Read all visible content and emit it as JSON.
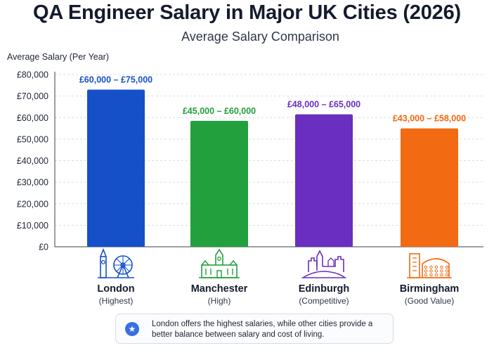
{
  "header": {
    "title": "QA Engineer Salary in Major UK Cities (2026)",
    "subtitle": "Average Salary Comparison"
  },
  "chart_data": {
    "type": "bar",
    "title": "QA Engineer Salary in Major UK Cities (2026)",
    "subtitle": "Average Salary Comparison",
    "ylabel": "Average Salary (Per Year)",
    "xlabel": "",
    "ylim": [
      0,
      80000
    ],
    "yticks": [
      "£0",
      "£10,000",
      "£20,000",
      "£30,000",
      "£40,000",
      "£50,000",
      "£60,000",
      "£70,000",
      "£80,000"
    ],
    "grid": true,
    "categories": [
      "London",
      "Manchester",
      "Edinburgh",
      "Birmingham"
    ],
    "sublabels": [
      "(Highest)",
      "(High)",
      "(Competitive)",
      "(Good Value)"
    ],
    "values": [
      73000,
      58500,
      61500,
      55000
    ],
    "data_labels": [
      "£60,000 – £75,000",
      "£45,000 – £60,000",
      "£48,000 – £65,000",
      "£43,000 – £58,000"
    ],
    "colors": [
      "#1650c8",
      "#21a03d",
      "#6a2ec0",
      "#f26a11"
    ],
    "icons": [
      "london-eye-big-ben-icon",
      "manchester-town-hall-icon",
      "edinburgh-castle-icon",
      "birmingham-bullring-icon"
    ]
  },
  "note": {
    "icon": "star-icon",
    "text": "London offers the highest salaries, while other cities provide a better balance between salary and cost of living."
  }
}
